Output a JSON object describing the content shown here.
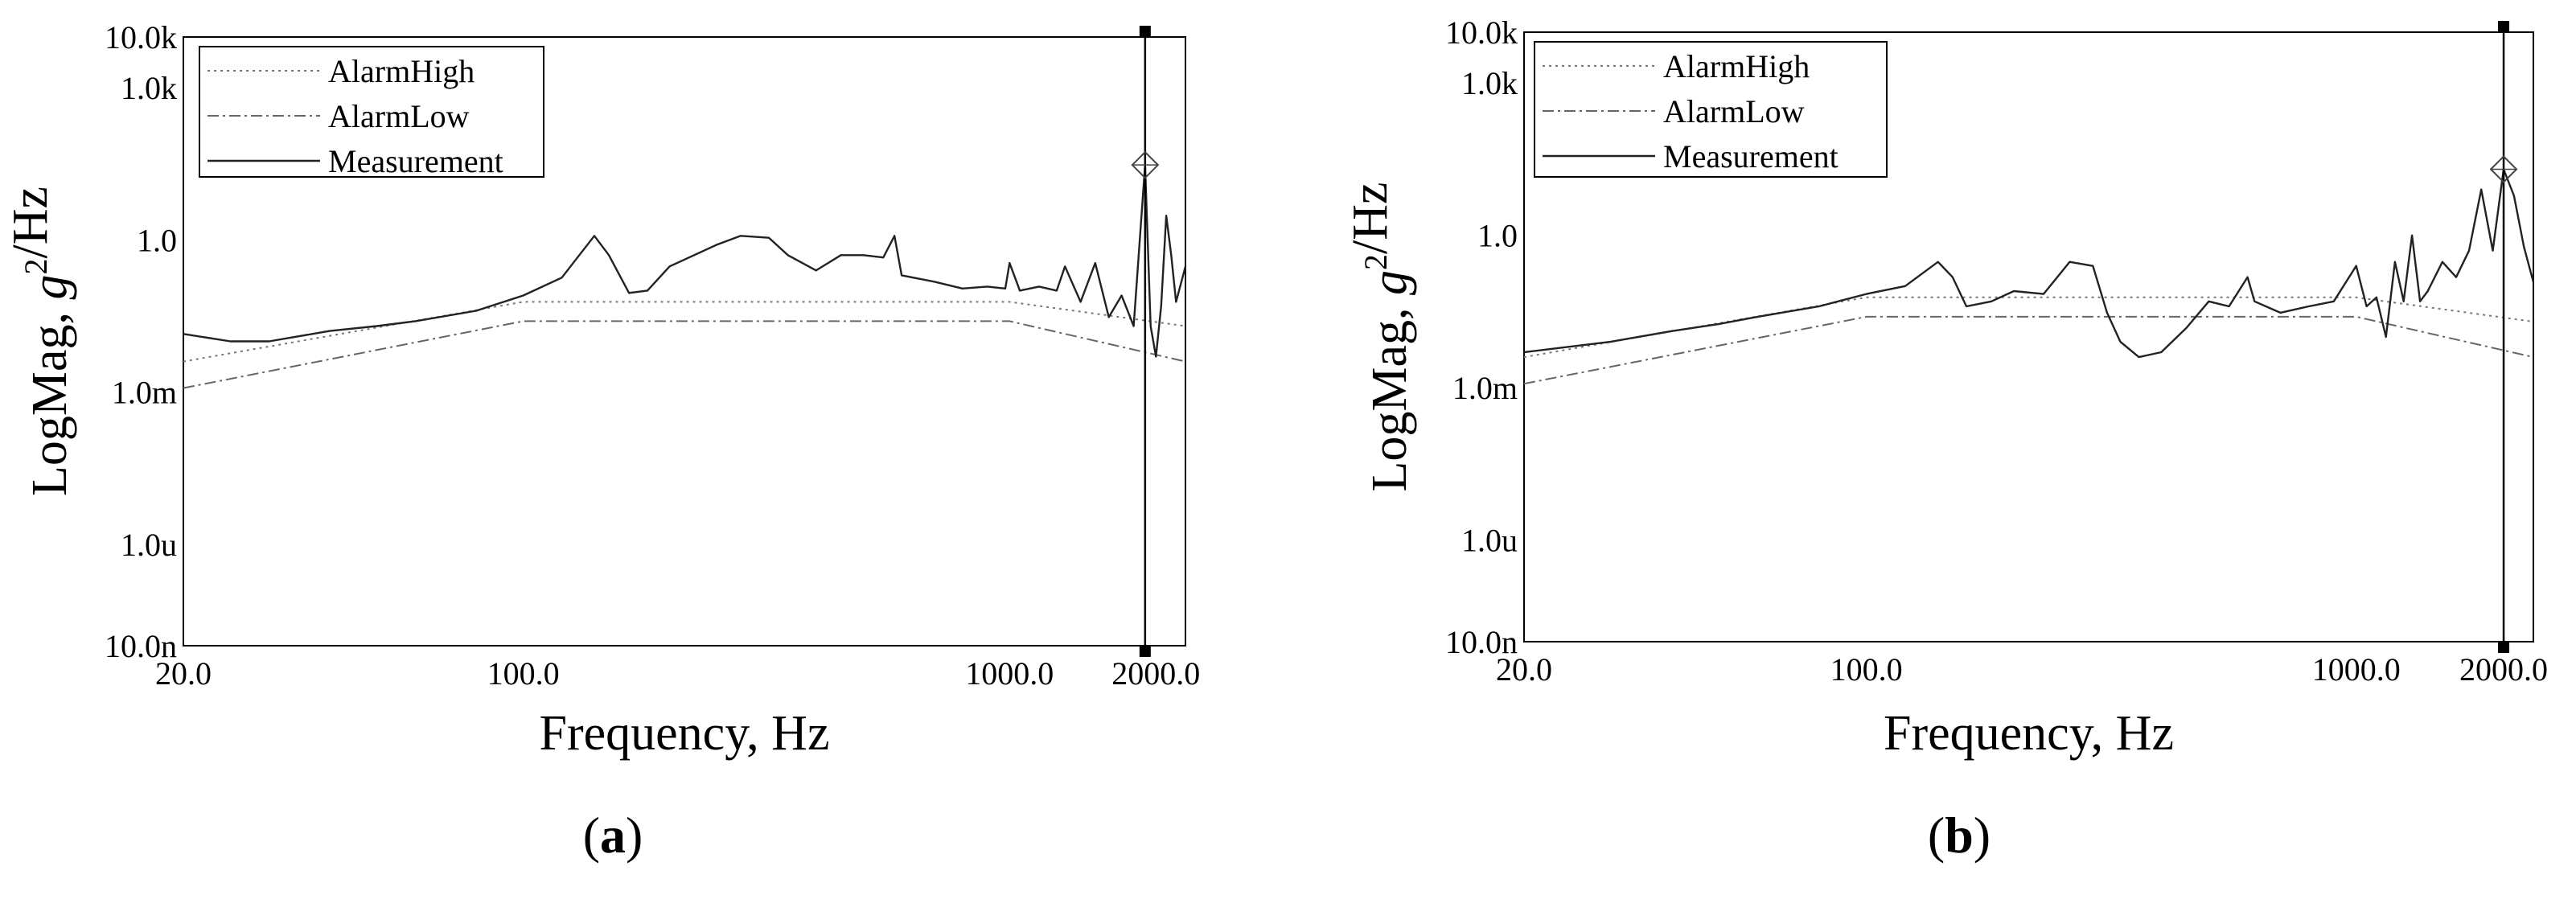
{
  "chart_data": [
    {
      "type": "line",
      "panel_label": "a",
      "xlabel": "Frequency, Hz",
      "ylabel": "LogMag, g²/Hz",
      "x_scale": "log",
      "y_scale": "log",
      "xlim": [
        20,
        2300
      ],
      "ylim": [
        1e-08,
        10000
      ],
      "x_ticks": [
        {
          "value": 20,
          "label": "20.0"
        },
        {
          "value": 100,
          "label": "100.0"
        },
        {
          "value": 1000,
          "label": "1000.0"
        },
        {
          "value": 2000,
          "label": "2000.0"
        }
      ],
      "y_ticks": [
        {
          "value": 10000,
          "label": "10.0k"
        },
        {
          "value": 1000,
          "label": "1.0k"
        },
        {
          "value": 1,
          "label": "1.0"
        },
        {
          "value": 0.001,
          "label": "1.0m"
        },
        {
          "value": 1e-06,
          "label": "1.0u"
        },
        {
          "value": 1e-08,
          "label": "10.0n"
        }
      ],
      "legend_position": "top-left",
      "cursor_x": 1900,
      "series": [
        {
          "name": "AlarmHigh",
          "style": "dotted",
          "points": [
            [
              20,
              0.004
            ],
            [
              100,
              0.06
            ],
            [
              1000,
              0.06
            ],
            [
              2300,
              0.02
            ]
          ]
        },
        {
          "name": "AlarmLow",
          "style": "dashdot",
          "points": [
            [
              20,
              0.0012
            ],
            [
              100,
              0.025
            ],
            [
              1000,
              0.025
            ],
            [
              2300,
              0.004
            ]
          ]
        },
        {
          "name": "Measurement",
          "style": "solid",
          "points": [
            [
              20,
              0.014
            ],
            [
              25,
              0.01
            ],
            [
              30,
              0.01
            ],
            [
              40,
              0.016
            ],
            [
              50,
              0.02
            ],
            [
              60,
              0.025
            ],
            [
              80,
              0.04
            ],
            [
              100,
              0.08
            ],
            [
              120,
              0.18
            ],
            [
              140,
              1.2
            ],
            [
              150,
              0.5
            ],
            [
              165,
              0.09
            ],
            [
              180,
              0.1
            ],
            [
              200,
              0.3
            ],
            [
              250,
              0.8
            ],
            [
              280,
              1.2
            ],
            [
              320,
              1.1
            ],
            [
              350,
              0.5
            ],
            [
              400,
              0.25
            ],
            [
              450,
              0.5
            ],
            [
              500,
              0.5
            ],
            [
              550,
              0.45
            ],
            [
              580,
              1.2
            ],
            [
              600,
              0.2
            ],
            [
              700,
              0.15
            ],
            [
              800,
              0.11
            ],
            [
              900,
              0.12
            ],
            [
              980,
              0.11
            ],
            [
              1000,
              0.35
            ],
            [
              1050,
              0.1
            ],
            [
              1150,
              0.12
            ],
            [
              1250,
              0.1
            ],
            [
              1300,
              0.3
            ],
            [
              1400,
              0.06
            ],
            [
              1500,
              0.35
            ],
            [
              1600,
              0.03
            ],
            [
              1700,
              0.08
            ],
            [
              1800,
              0.02
            ],
            [
              1900,
              30
            ],
            [
              1950,
              0.02
            ],
            [
              2000,
              0.005
            ],
            [
              2050,
              0.05
            ],
            [
              2100,
              3
            ],
            [
              2150,
              0.5
            ],
            [
              2200,
              0.06
            ],
            [
              2300,
              0.3
            ]
          ]
        }
      ]
    },
    {
      "type": "line",
      "panel_label": "b",
      "xlabel": "Frequency, Hz",
      "ylabel": "LogMag, g²/Hz",
      "x_scale": "log",
      "y_scale": "log",
      "xlim": [
        20,
        2300
      ],
      "ylim": [
        1e-08,
        10000
      ],
      "x_ticks": [
        {
          "value": 20,
          "label": "20.0"
        },
        {
          "value": 100,
          "label": "100.0"
        },
        {
          "value": 1000,
          "label": "1000.0"
        },
        {
          "value": 2000,
          "label": "2000.0"
        }
      ],
      "y_ticks": [
        {
          "value": 10000,
          "label": "10.0k"
        },
        {
          "value": 1000,
          "label": "1.0k"
        },
        {
          "value": 1,
          "label": "1.0"
        },
        {
          "value": 0.001,
          "label": "1.0m"
        },
        {
          "value": 1e-06,
          "label": "1.0u"
        },
        {
          "value": 1e-08,
          "label": "10.0n"
        }
      ],
      "legend_position": "top-left",
      "cursor_x": 2000,
      "series": [
        {
          "name": "AlarmHigh",
          "style": "dotted",
          "points": [
            [
              20,
              0.004
            ],
            [
              100,
              0.06
            ],
            [
              1000,
              0.06
            ],
            [
              2300,
              0.02
            ]
          ]
        },
        {
          "name": "AlarmLow",
          "style": "dashdot",
          "points": [
            [
              20,
              0.0012
            ],
            [
              100,
              0.025
            ],
            [
              1000,
              0.025
            ],
            [
              2300,
              0.004
            ]
          ]
        },
        {
          "name": "Measurement",
          "style": "solid",
          "points": [
            [
              20,
              0.005
            ],
            [
              30,
              0.008
            ],
            [
              40,
              0.013
            ],
            [
              50,
              0.018
            ],
            [
              60,
              0.025
            ],
            [
              80,
              0.04
            ],
            [
              100,
              0.07
            ],
            [
              120,
              0.1
            ],
            [
              140,
              0.3
            ],
            [
              150,
              0.15
            ],
            [
              160,
              0.04
            ],
            [
              180,
              0.05
            ],
            [
              200,
              0.08
            ],
            [
              230,
              0.07
            ],
            [
              260,
              0.3
            ],
            [
              290,
              0.25
            ],
            [
              310,
              0.03
            ],
            [
              330,
              0.008
            ],
            [
              360,
              0.004
            ],
            [
              400,
              0.005
            ],
            [
              450,
              0.015
            ],
            [
              500,
              0.05
            ],
            [
              550,
              0.04
            ],
            [
              600,
              0.15
            ],
            [
              620,
              0.05
            ],
            [
              700,
              0.03
            ],
            [
              800,
              0.04
            ],
            [
              900,
              0.05
            ],
            [
              1000,
              0.25
            ],
            [
              1050,
              0.04
            ],
            [
              1100,
              0.06
            ],
            [
              1150,
              0.01
            ],
            [
              1200,
              0.3
            ],
            [
              1250,
              0.05
            ],
            [
              1300,
              1
            ],
            [
              1350,
              0.05
            ],
            [
              1400,
              0.08
            ],
            [
              1500,
              0.3
            ],
            [
              1600,
              0.15
            ],
            [
              1700,
              0.5
            ],
            [
              1800,
              8
            ],
            [
              1900,
              0.5
            ],
            [
              2000,
              20
            ],
            [
              2100,
              6
            ],
            [
              2200,
              0.6
            ],
            [
              2300,
              0.12
            ]
          ]
        }
      ]
    }
  ]
}
